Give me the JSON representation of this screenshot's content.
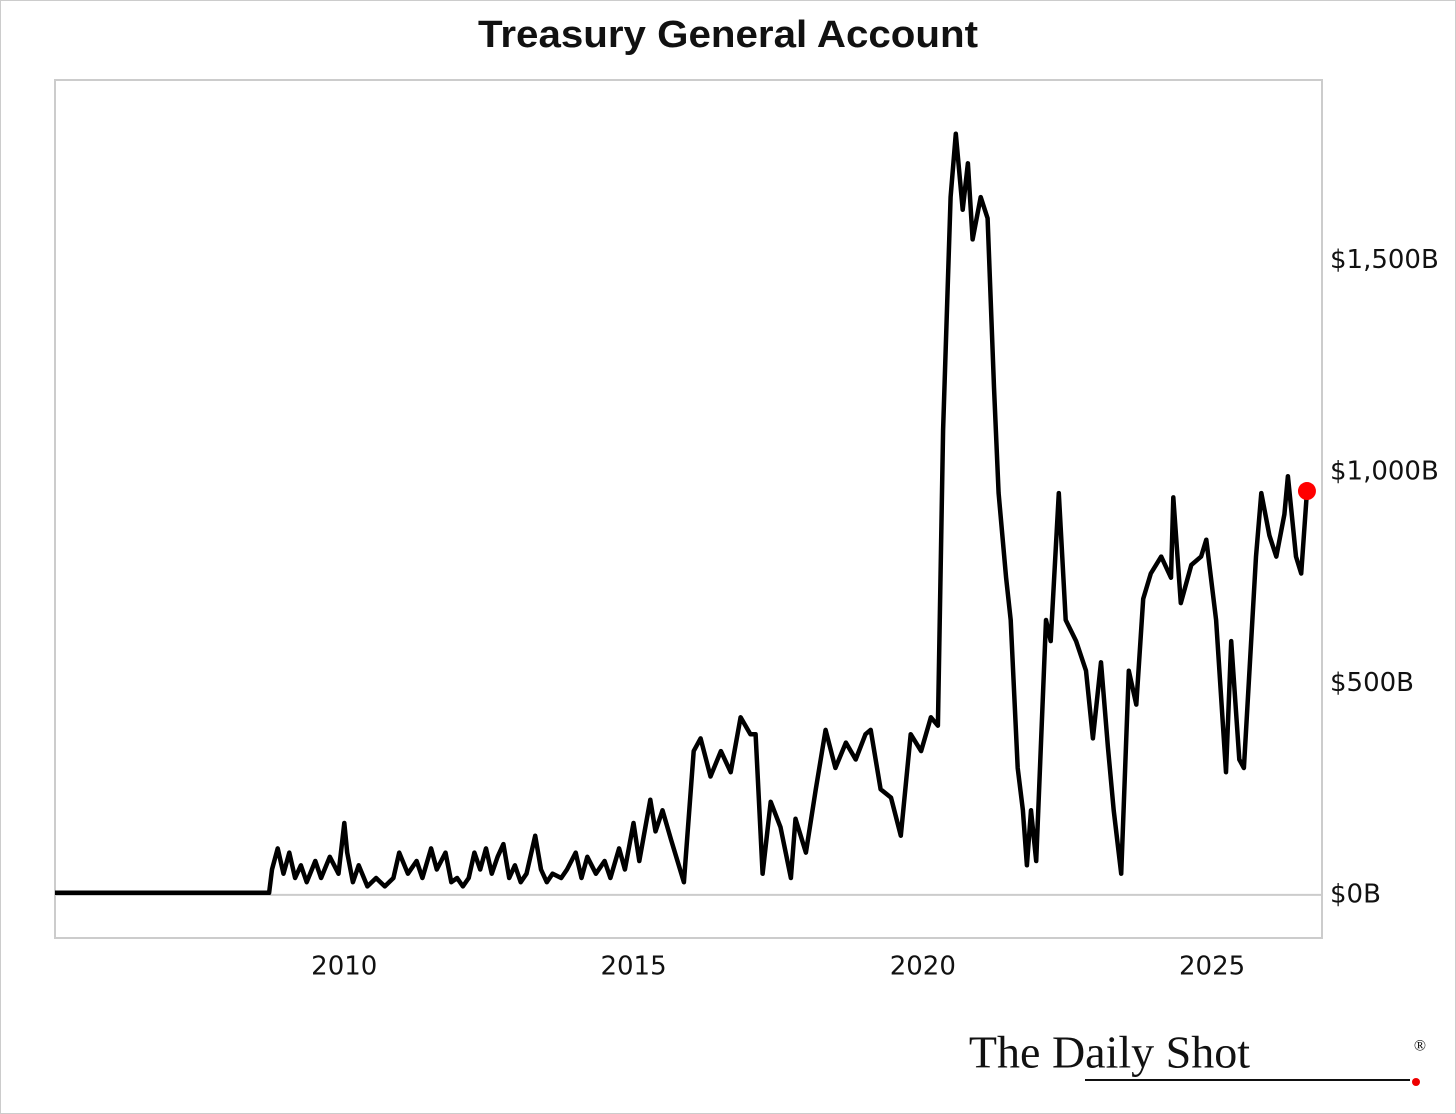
{
  "chart_data": {
    "type": "line",
    "title": "Treasury General Account",
    "x": [
      2005.0,
      2006.5,
      2007.5,
      2008.0,
      2008.7,
      2008.75,
      2008.85,
      2008.95,
      2009.05,
      2009.15,
      2009.25,
      2009.35,
      2009.5,
      2009.6,
      2009.75,
      2009.9,
      2010.0,
      2010.05,
      2010.15,
      2010.25,
      2010.4,
      2010.55,
      2010.7,
      2010.85,
      2010.95,
      2011.1,
      2011.25,
      2011.35,
      2011.5,
      2011.6,
      2011.75,
      2011.85,
      2011.95,
      2012.05,
      2012.15,
      2012.25,
      2012.35,
      2012.45,
      2012.55,
      2012.65,
      2012.75,
      2012.85,
      2012.95,
      2013.05,
      2013.15,
      2013.3,
      2013.4,
      2013.5,
      2013.6,
      2013.75,
      2013.85,
      2014.0,
      2014.1,
      2014.2,
      2014.35,
      2014.5,
      2014.6,
      2014.75,
      2014.85,
      2015.0,
      2015.1,
      2015.29,
      2015.38,
      2015.5,
      2015.65,
      2015.87,
      2016.04,
      2016.16,
      2016.33,
      2016.51,
      2016.68,
      2016.85,
      2017.02,
      2017.11,
      2017.23,
      2017.37,
      2017.54,
      2017.72,
      2017.8,
      2017.98,
      2018.15,
      2018.32,
      2018.49,
      2018.67,
      2018.84,
      2019.01,
      2019.1,
      2019.27,
      2019.45,
      2019.62,
      2019.79,
      2019.97,
      2020.14,
      2020.26,
      2020.35,
      2020.48,
      2020.57,
      2020.69,
      2020.78,
      2020.86,
      2021.0,
      2021.12,
      2021.23,
      2021.31,
      2021.44,
      2021.52,
      2021.64,
      2021.73,
      2021.8,
      2021.87,
      2021.96,
      2022.13,
      2022.21,
      2022.35,
      2022.47,
      2022.65,
      2022.82,
      2022.94,
      2023.08,
      2023.2,
      2023.3,
      2023.43,
      2023.56,
      2023.69,
      2023.81,
      2023.94,
      2024.12,
      2024.29,
      2024.33,
      2024.46,
      2024.64,
      2024.81,
      2024.9,
      2025.07,
      2025.24,
      2025.33,
      2025.47,
      2025.55,
      2025.76,
      2025.85,
      2025.99,
      2026.11,
      2026.25,
      2026.31,
      2026.45,
      2026.54,
      2026.64
    ],
    "values": [
      5,
      5,
      5,
      5,
      5,
      60,
      110,
      50,
      100,
      40,
      70,
      30,
      80,
      40,
      90,
      50,
      170,
      100,
      30,
      70,
      20,
      40,
      20,
      40,
      100,
      50,
      80,
      40,
      110,
      60,
      100,
      30,
      40,
      20,
      40,
      100,
      60,
      110,
      50,
      90,
      120,
      40,
      70,
      30,
      50,
      140,
      60,
      30,
      50,
      40,
      60,
      100,
      40,
      90,
      50,
      80,
      40,
      110,
      60,
      170,
      80,
      225,
      150,
      200,
      130,
      30,
      340,
      370,
      280,
      340,
      290,
      420,
      380,
      380,
      50,
      220,
      160,
      40,
      180,
      100,
      250,
      390,
      300,
      360,
      320,
      380,
      390,
      250,
      230,
      140,
      380,
      340,
      420,
      400,
      1100,
      1650,
      1800,
      1620,
      1730,
      1550,
      1650,
      1600,
      1200,
      950,
      750,
      650,
      300,
      200,
      70,
      200,
      80,
      650,
      600,
      950,
      650,
      600,
      530,
      370,
      550,
      350,
      200,
      50,
      530,
      450,
      700,
      760,
      800,
      750,
      940,
      690,
      780,
      800,
      840,
      650,
      290,
      600,
      320,
      300,
      800,
      950,
      850,
      800,
      900,
      990,
      800,
      760,
      955
    ],
    "color": "#000000",
    "last_point_color": "#ff0000",
    "xlim": [
      2005,
      2026.9
    ],
    "xticks": [
      2010,
      2015,
      2020,
      2025
    ],
    "ylim": [
      -102,
      1927
    ],
    "yticks": [
      {
        "value": 0,
        "label": "$0B"
      },
      {
        "value": 500,
        "label": "$500B"
      },
      {
        "value": 1000,
        "label": "$1,000B"
      },
      {
        "value": 1500,
        "label": "$1,500B"
      }
    ],
    "zero_line": true,
    "logo": "The Daily Shot",
    "logo_mark": "®"
  }
}
